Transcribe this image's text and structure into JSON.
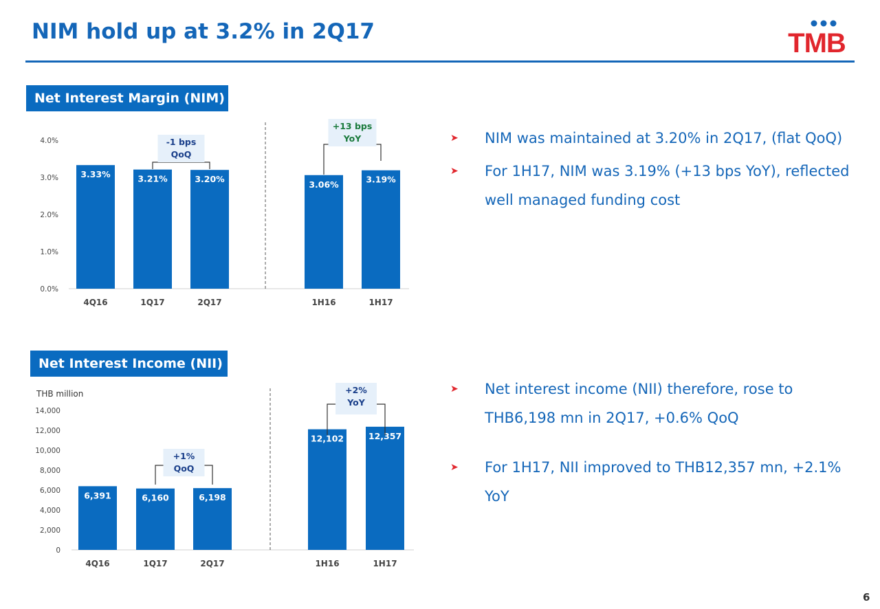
{
  "title": "NIM hold up at 3.2% in 2Q17",
  "logo_text": "TMB",
  "page_number": "6",
  "colors": {
    "brand_blue": "#1466b8",
    "bar_blue": "#0a6bc0",
    "bullet_red": "#e1262d",
    "annotation_green": "#1a7a3c"
  },
  "nim_section": {
    "label": "Net Interest Margin (NIM)",
    "bullets": [
      "NIM was maintained at 3.20% in 2Q17, (flat QoQ)",
      "For 1H17, NIM was 3.19% (+13 bps YoY), reflected well managed funding cost"
    ]
  },
  "nii_section": {
    "label": "Net Interest Income (NII)",
    "bullets": [
      "Net interest income (NII) therefore, rose to THB6,198 mn in 2Q17, +0.6% QoQ",
      "For 1H17, NII improved to THB12,357 mn, +2.1% YoY"
    ]
  },
  "chart_data": [
    {
      "type": "bar",
      "categories": [
        "4Q16",
        "1Q17",
        "2Q17",
        "1H16",
        "1H17"
      ],
      "values": [
        3.33,
        3.21,
        3.2,
        3.06,
        3.19
      ],
      "value_labels": [
        "3.33%",
        "3.21%",
        "3.20%",
        "3.06%",
        "3.19%"
      ],
      "ylim": [
        0,
        4
      ],
      "yticks": [
        0,
        1,
        2,
        3,
        4
      ],
      "ytick_labels": [
        "0.0%",
        "1.0%",
        "2.0%",
        "3.0%",
        "4.0%"
      ],
      "ylabel": "",
      "grid": false,
      "annotations": [
        {
          "from": "1Q17",
          "to": "2Q17",
          "line1": "-1 bps",
          "line2": "QoQ",
          "color": "#1a3f8a"
        },
        {
          "from": "1H16",
          "to": "1H17",
          "line1": "+13 bps",
          "line2": "YoY",
          "color": "#1a7a3c"
        }
      ]
    },
    {
      "type": "bar",
      "categories": [
        "4Q16",
        "1Q17",
        "2Q17",
        "1H16",
        "1H17"
      ],
      "values": [
        6391,
        6160,
        6198,
        12102,
        12357
      ],
      "value_labels": [
        "6,391",
        "6,160",
        "6,198",
        "12,102",
        "12,357"
      ],
      "ylim": [
        0,
        14000
      ],
      "yticks": [
        0,
        2000,
        4000,
        6000,
        8000,
        10000,
        12000,
        14000
      ],
      "ytick_labels": [
        "0",
        "2,000",
        "4,000",
        "6,000",
        "8,000",
        "10,000",
        "12,000",
        "14,000"
      ],
      "ylabel": "THB million",
      "grid": false,
      "annotations": [
        {
          "from": "1Q17",
          "to": "2Q17",
          "line1": "+1%",
          "line2": "QoQ",
          "color": "#1a3f8a"
        },
        {
          "from": "1H16",
          "to": "1H17",
          "line1": "+2%",
          "line2": "YoY",
          "color": "#1a3f8a"
        }
      ]
    }
  ]
}
